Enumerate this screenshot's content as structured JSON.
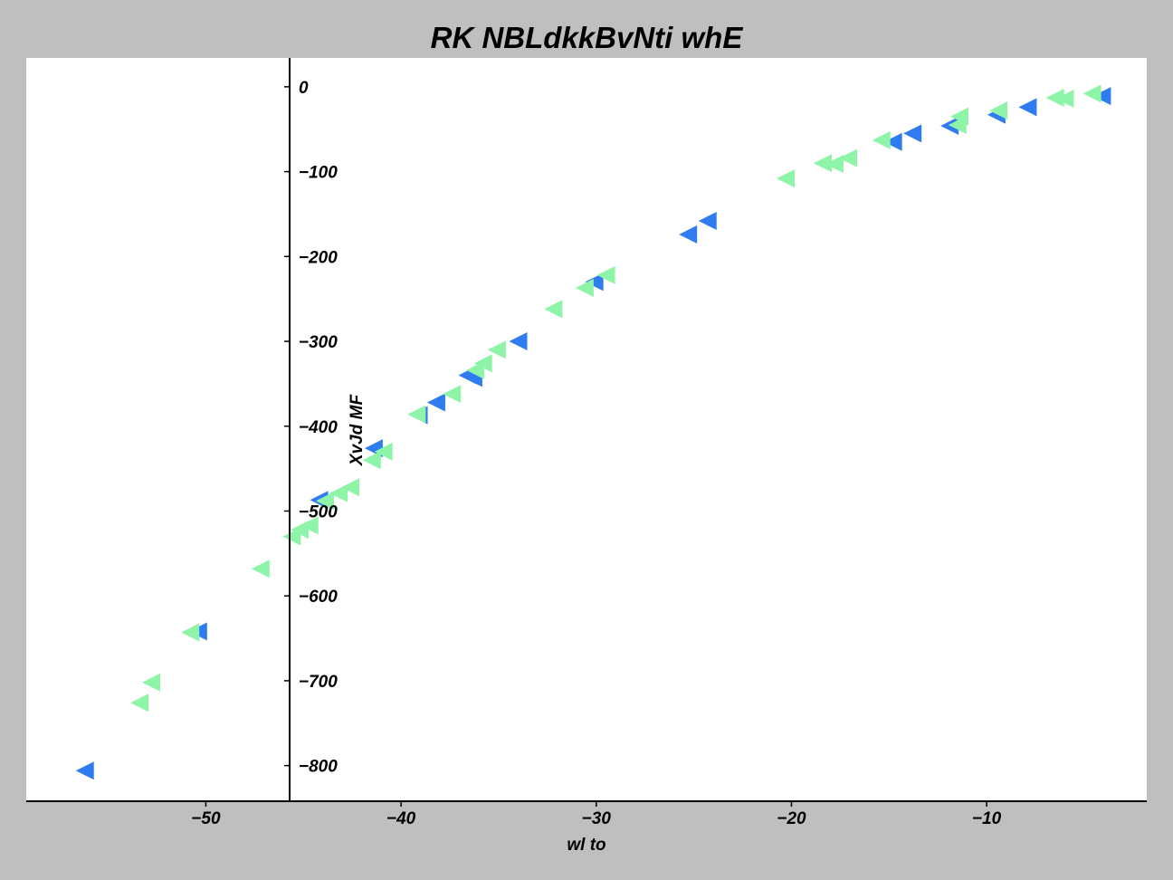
{
  "chart_data": {
    "type": "scatter",
    "title": "RK NBLdkkBvNti whE",
    "xlabel": "wl to",
    "ylabel": "XvJd MF",
    "xlim": [
      -59.2,
      -1.8
    ],
    "ylim": [
      -842,
      34
    ],
    "xticks": [
      -50,
      -40,
      -30,
      -20,
      -10
    ],
    "yticks": [
      0,
      -100,
      -200,
      -300,
      -400,
      -500,
      -600,
      -700,
      -800
    ],
    "xtick_labels": [
      "−50",
      "−40",
      "−30",
      "−20",
      "−10"
    ],
    "ytick_labels": [
      "0",
      "−100",
      "−200",
      "−300",
      "−400",
      "−500",
      "−600",
      "−700",
      "−800"
    ],
    "grid": false,
    "marker": "triangle-left",
    "series": [
      {
        "color": "#2f7bf0",
        "points": [
          [
            -56.2,
            -806
          ],
          [
            -50.4,
            -642
          ],
          [
            -44.2,
            -487
          ],
          [
            -41.4,
            -426
          ],
          [
            -39.1,
            -387
          ],
          [
            -38.2,
            -372
          ],
          [
            -36.6,
            -340
          ],
          [
            -36.3,
            -343
          ],
          [
            -34.0,
            -300
          ],
          [
            -30.1,
            -230
          ],
          [
            -25.3,
            -174
          ],
          [
            -24.3,
            -158
          ],
          [
            -14.8,
            -65
          ],
          [
            -13.8,
            -55
          ],
          [
            -11.9,
            -46
          ],
          [
            -9.5,
            -33
          ],
          [
            -7.9,
            -24
          ],
          [
            -4.1,
            -11
          ]
        ]
      },
      {
        "color": "#8ef5a8",
        "points": [
          [
            -53.4,
            -726
          ],
          [
            -52.8,
            -702
          ],
          [
            -50.8,
            -643
          ],
          [
            -47.2,
            -568
          ],
          [
            -45.6,
            -530
          ],
          [
            -45.2,
            -522
          ],
          [
            -44.7,
            -517
          ],
          [
            -43.9,
            -488
          ],
          [
            -43.2,
            -479
          ],
          [
            -42.6,
            -472
          ],
          [
            -41.5,
            -440
          ],
          [
            -40.9,
            -430
          ],
          [
            -39.2,
            -386
          ],
          [
            -37.4,
            -362
          ],
          [
            -36.2,
            -334
          ],
          [
            -35.8,
            -326
          ],
          [
            -35.1,
            -310
          ],
          [
            -32.2,
            -262
          ],
          [
            -30.6,
            -237
          ],
          [
            -29.5,
            -222
          ],
          [
            -20.3,
            -108
          ],
          [
            -18.4,
            -90
          ],
          [
            -17.8,
            -91
          ],
          [
            -17.1,
            -84
          ],
          [
            -15.4,
            -63
          ],
          [
            -11.5,
            -45
          ],
          [
            -11.4,
            -35
          ],
          [
            -9.4,
            -28
          ],
          [
            -6.5,
            -13
          ],
          [
            -6.0,
            -14
          ],
          [
            -4.6,
            -8
          ]
        ]
      }
    ]
  }
}
